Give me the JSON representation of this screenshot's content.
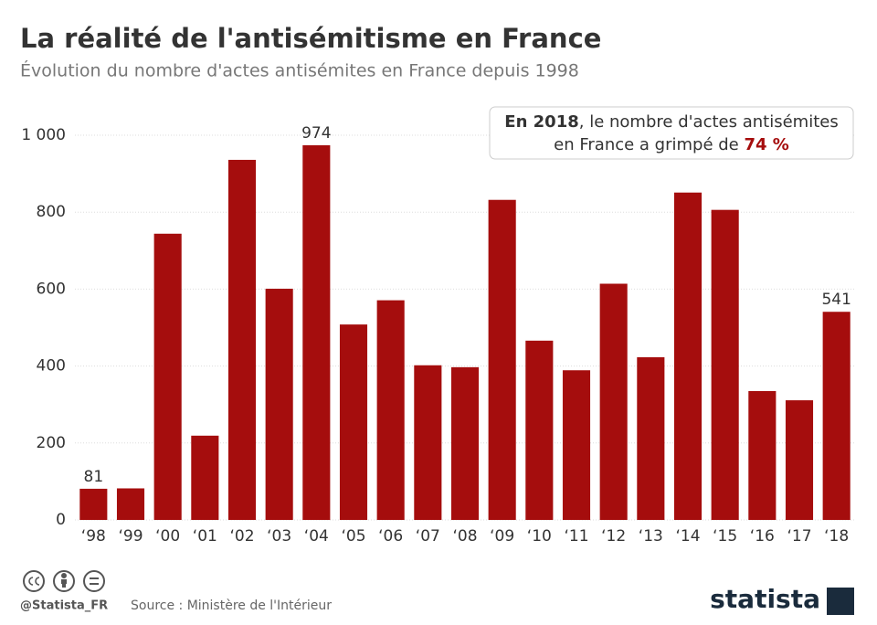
{
  "chart_data": {
    "type": "bar",
    "title": "La réalité de l'antisémitisme en France",
    "subtitle": "Évolution du nombre d'actes antisémites en France depuis 1998",
    "categories": [
      "‘98",
      "‘99",
      "‘00",
      "‘01",
      "‘02",
      "‘03",
      "‘04",
      "‘05",
      "‘06",
      "‘07",
      "‘08",
      "‘09",
      "‘10",
      "‘11",
      "‘12",
      "‘13",
      "‘14",
      "‘15",
      "‘16",
      "‘17",
      "‘18"
    ],
    "values": [
      81,
      82,
      744,
      219,
      936,
      601,
      974,
      508,
      571,
      402,
      397,
      832,
      466,
      389,
      614,
      423,
      851,
      806,
      335,
      311,
      541
    ],
    "value_labels": [
      "81",
      null,
      null,
      null,
      null,
      null,
      "974",
      null,
      null,
      null,
      null,
      null,
      null,
      null,
      null,
      null,
      null,
      null,
      null,
      null,
      "541"
    ],
    "color": "#a50d0d",
    "ylim": [
      0,
      1000
    ],
    "yticks": [
      0,
      200,
      400,
      600,
      800,
      {
        "value": 1000,
        "label": "1 000"
      }
    ],
    "grid": true,
    "annotation": {
      "lead": "En 2018",
      "text": ", le nombre d'actes antisémites",
      "line2": "en France a grimpé de ",
      "highlight": "74 %"
    },
    "footer": {
      "handle": "@Statista_FR",
      "source": "Source : Ministère de l'Intérieur",
      "brand": "statista"
    }
  }
}
